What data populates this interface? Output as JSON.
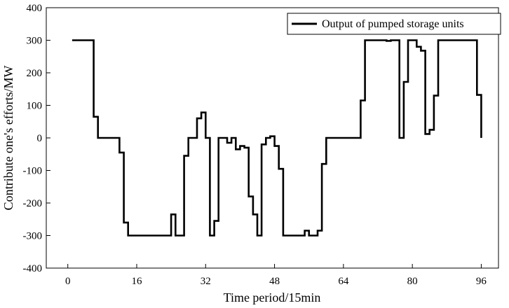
{
  "chart_data": {
    "type": "line",
    "title": "",
    "xlabel": "Time period/15min",
    "ylabel": "Contribute one's efforts/MW",
    "xlim": [
      -5,
      100
    ],
    "ylim": [
      -400,
      400
    ],
    "xticks": [
      0,
      16,
      32,
      48,
      64,
      80,
      96
    ],
    "yticks": [
      -400,
      -300,
      -200,
      -100,
      0,
      100,
      200,
      300,
      400
    ],
    "grid": false,
    "legend_position": "top-right",
    "series": [
      {
        "name": "Output of pumped storage units",
        "color": "#000000",
        "step": true,
        "x": [
          1,
          2,
          3,
          4,
          5,
          6,
          7,
          8,
          9,
          10,
          11,
          12,
          13,
          14,
          15,
          16,
          17,
          18,
          19,
          20,
          21,
          22,
          23,
          24,
          25,
          26,
          27,
          28,
          29,
          30,
          31,
          32,
          33,
          34,
          35,
          36,
          37,
          38,
          39,
          40,
          41,
          42,
          43,
          44,
          45,
          46,
          47,
          48,
          49,
          50,
          51,
          52,
          53,
          54,
          55,
          56,
          57,
          58,
          59,
          60,
          61,
          62,
          63,
          64,
          65,
          66,
          67,
          68,
          69,
          70,
          71,
          72,
          73,
          74,
          75,
          76,
          77,
          78,
          79,
          80,
          81,
          82,
          83,
          84,
          85,
          86,
          87,
          88,
          89,
          90,
          91,
          92,
          93,
          94,
          95,
          96
        ],
        "y": [
          300,
          300,
          300,
          300,
          300,
          65,
          0,
          0,
          0,
          0,
          0,
          -45,
          -260,
          -300,
          -300,
          -300,
          -300,
          -300,
          -300,
          -300,
          -300,
          -300,
          -300,
          -235,
          -300,
          -300,
          -55,
          0,
          0,
          60,
          78,
          0,
          -300,
          -255,
          0,
          0,
          -15,
          0,
          -35,
          -25,
          -30,
          -180,
          -235,
          -300,
          -20,
          0,
          5,
          -25,
          -95,
          -300,
          -300,
          -300,
          -300,
          -300,
          -285,
          -300,
          -300,
          -285,
          -80,
          0,
          0,
          0,
          0,
          0,
          0,
          0,
          0,
          115,
          300,
          300,
          300,
          300,
          300,
          298,
          300,
          300,
          0,
          172,
          300,
          300,
          280,
          268,
          12,
          25,
          130,
          300,
          300,
          300,
          300,
          300,
          300,
          300,
          300,
          300,
          132,
          0
        ]
      }
    ]
  }
}
